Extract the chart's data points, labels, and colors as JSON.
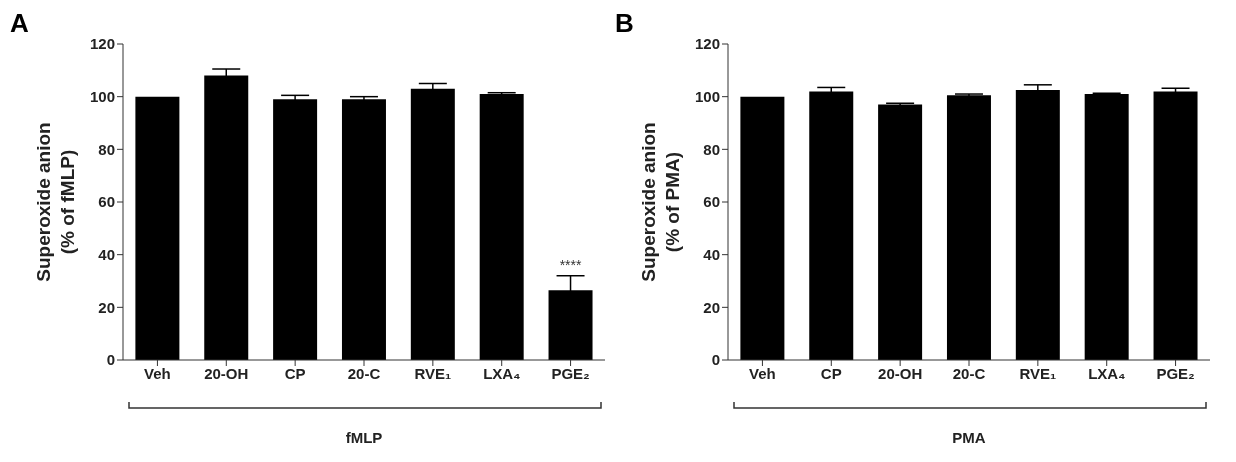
{
  "chart_data": [
    {
      "type": "bar",
      "title": "A",
      "ylabel": "Superoxide anion\n(% of fMLP)",
      "xlabel": "fMLP",
      "categories": [
        "Veh",
        "20-OH",
        "CP",
        "20-C",
        "RVE₁",
        "LXA₄",
        "PGE₂"
      ],
      "values": [
        100,
        108,
        99,
        99,
        103,
        101,
        26.5
      ],
      "errors": [
        null,
        2.5,
        1.5,
        1,
        2,
        0.5,
        5.5
      ],
      "color": "#000000",
      "ylim": [
        0,
        120
      ],
      "yticks": [
        0,
        20,
        40,
        60,
        80,
        100,
        120
      ],
      "annotations": [
        {
          "text": "****",
          "x": "PGE₂",
          "y": 26.5
        }
      ]
    },
    {
      "type": "bar",
      "title": "B",
      "ylabel": "Superoxide anion\n(% of PMA)",
      "xlabel": "PMA",
      "categories": [
        "Veh",
        "CP",
        "20-OH",
        "20-C",
        "RVE₁",
        "LXA₄",
        "PGE₂"
      ],
      "values": [
        100,
        102,
        97,
        100.5,
        102.5,
        101,
        102
      ],
      "errors": [
        null,
        1.5,
        0.5,
        0.5,
        2,
        0.3,
        1.2
      ],
      "color": "#000000",
      "ylim": [
        0,
        120
      ],
      "yticks": [
        0,
        20,
        40,
        60,
        80,
        100,
        120
      ]
    }
  ]
}
